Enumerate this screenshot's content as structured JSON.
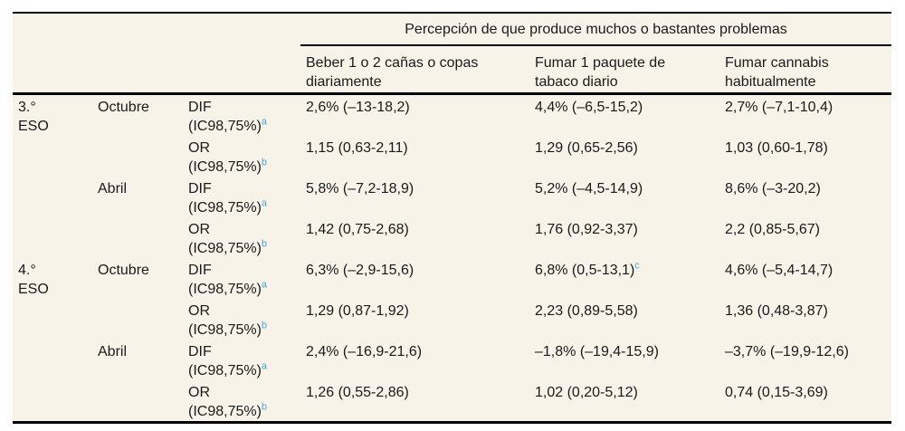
{
  "table": {
    "spanner": "Percepción de que produce muchos o bastantes problemas",
    "column_headers": [
      {
        "lines": [
          "Beber 1 o 2 cañas o copas",
          "diariamente"
        ]
      },
      {
        "lines": [
          "Fumar 1 paquete de",
          "tabaco diario"
        ]
      },
      {
        "lines": [
          "Fumar cannabis",
          "habitualmente"
        ]
      }
    ],
    "groups": [
      {
        "grade_lines": [
          "3.°",
          "ESO"
        ],
        "months": [
          {
            "month": "Octubre",
            "rows": [
              {
                "stat": "DIF",
                "ci": "(IC98,75%)",
                "marker": "a",
                "values": [
                  "2,6% (–13-18,2)",
                  "4,4% (–6,5-15,2)",
                  "2,7% (–7,1-10,4)"
                ],
                "markers": [
                  "",
                  "",
                  ""
                ]
              },
              {
                "stat": "OR",
                "ci": "(IC98,75%)",
                "marker": "b",
                "values": [
                  "1,15 (0,63-2,11)",
                  "1,29 (0,65-2,56)",
                  "1,03 (0,60-1,78)"
                ],
                "markers": [
                  "",
                  "",
                  ""
                ]
              }
            ]
          },
          {
            "month": "Abril",
            "rows": [
              {
                "stat": "DIF",
                "ci": "(IC98,75%)",
                "marker": "a",
                "values": [
                  "5,8% (–7,2-18,9)",
                  "5,2% (–4,5-14,9)",
                  "8,6% (–3-20,2)"
                ],
                "markers": [
                  "",
                  "",
                  ""
                ]
              },
              {
                "stat": "OR",
                "ci": "(IC98,75%)",
                "marker": "b",
                "values": [
                  "1,42 (0,75-2,68)",
                  "1,76 (0,92-3,37)",
                  "2,2 (0,85-5,67)"
                ],
                "markers": [
                  "",
                  "",
                  ""
                ]
              }
            ]
          }
        ]
      },
      {
        "grade_lines": [
          "4.°",
          "ESO"
        ],
        "months": [
          {
            "month": "Octubre",
            "rows": [
              {
                "stat": "DIF",
                "ci": "(IC98,75%)",
                "marker": "a",
                "values": [
                  "6,3% (–2,9-15,6)",
                  "6,8% (0,5-13,1)",
                  "4,6% (–5,4-14,7)"
                ],
                "markers": [
                  "",
                  "c",
                  ""
                ]
              },
              {
                "stat": "OR",
                "ci": "(IC98,75%)",
                "marker": "b",
                "values": [
                  "1,29 (0,87-1,92)",
                  "2,23 (0,89-5,58)",
                  "1,36 (0,48-3,87)"
                ],
                "markers": [
                  "",
                  "",
                  ""
                ]
              }
            ]
          },
          {
            "month": "Abril",
            "rows": [
              {
                "stat": "DIF",
                "ci": "(IC98,75%)",
                "marker": "a",
                "values": [
                  "2,4% (–16,9-21,6)",
                  "–1,8% (–19,4-15,9)",
                  "–3,7% (–19,9-12,6)"
                ],
                "markers": [
                  "",
                  "",
                  ""
                ]
              },
              {
                "stat": "OR",
                "ci": "(IC98,75%)",
                "marker": "b",
                "values": [
                  "1,26 (0,55-2,86)",
                  "1,02 (0,20-5,12)",
                  "0,74 (0,15-3,69)"
                ],
                "markers": [
                  "",
                  "",
                  ""
                ]
              }
            ]
          }
        ]
      }
    ],
    "colors": {
      "table_background": "#f7f3e9",
      "text": "#1a1a1a",
      "rule": "#000000",
      "footnote_marker_blue": "#4ba5d9"
    }
  }
}
